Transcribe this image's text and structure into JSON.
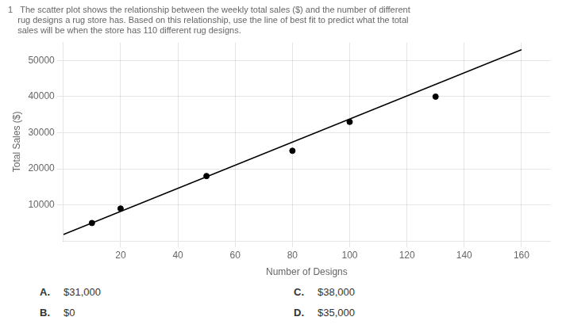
{
  "chart_data": {
    "type": "scatter",
    "title": [
      "1   The scatter plot shows the relationship between the weekly total sales ($) and the number of different",
      "    rug designs a rug store has. Based on this relationship, use the line of best fit to predict what the total",
      "    sales will be when the store has 110 different rug designs."
    ],
    "x_label": "Number of Designs",
    "y_label": "Total Sales ($)",
    "series": [
      {
        "type": "scatter",
        "color": "black",
        "x": [
          10,
          20,
          50,
          80,
          100,
          130
        ],
        "values": [
          5000,
          9000,
          18000,
          25000,
          33000,
          40000
        ]
      },
      {
        "type": "line",
        "color": "black",
        "x": [
          0,
          160
        ],
        "values": [
          1800,
          53000
        ]
      }
    ],
    "xlim": [
      0,
      170
    ],
    "xticks": [
      20,
      40,
      60,
      80,
      100,
      120,
      140,
      160
    ],
    "ylim": [
      0,
      55000
    ],
    "yticks": [
      10000,
      20000,
      30000,
      40000,
      50000
    ],
    "grid": true,
    "annotations": [
      {
        "label": "A.",
        "text": "$31,000"
      },
      {
        "label": "B.",
        "text": "$0"
      },
      {
        "label": "C.",
        "text": "$38,000"
      },
      {
        "label": "D.",
        "text": "$35,000"
      }
    ]
  }
}
